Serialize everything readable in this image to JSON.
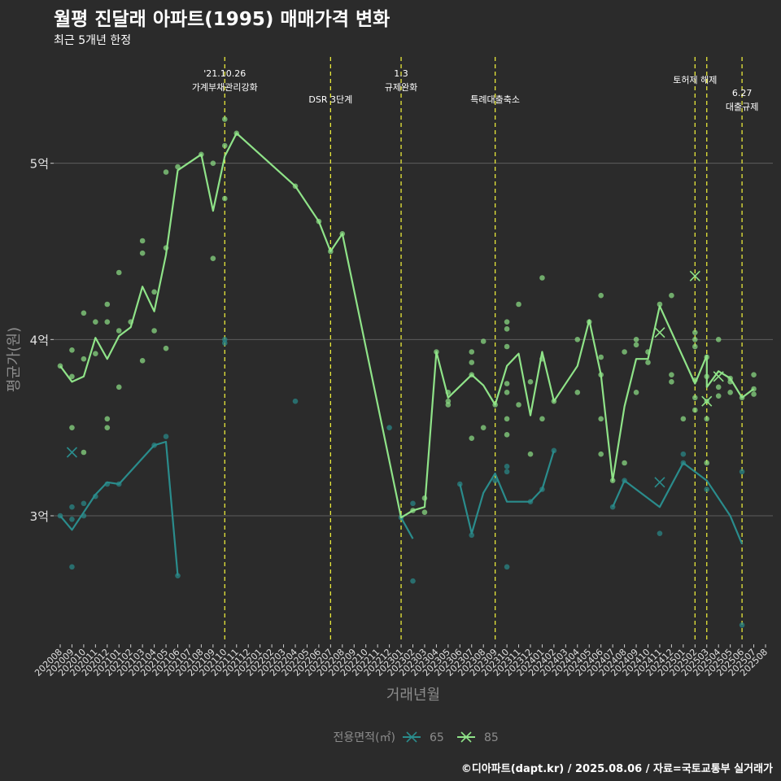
{
  "title": "월평 진달래 아파트(1995) 매매가격 변화",
  "subtitle": "최근 5개년 한정",
  "caption": "©디아파트(dapt.kr) / 2025.08.06 / 자료=국토교통부 실거래가",
  "colors": {
    "background": "#2b2b2b",
    "series65": "#2a8c8c",
    "series85": "#8fe388",
    "vline": "#e8e83a",
    "grid": "#5e5e5e"
  },
  "chart_data": {
    "type": "line",
    "xlabel": "거래년월",
    "ylabel": "평균가(원)",
    "ylim": [
      2.28,
      5.52
    ],
    "yticks": [
      {
        "value": 3,
        "label": "3억"
      },
      {
        "value": 4,
        "label": "4억"
      },
      {
        "value": 5,
        "label": "5억"
      }
    ],
    "x": [
      "202008",
      "202009",
      "202010",
      "202011",
      "202012",
      "202101",
      "202102",
      "202103",
      "202104",
      "202105",
      "202106",
      "202107",
      "202108",
      "202109",
      "202110",
      "202111",
      "202112",
      "202201",
      "202202",
      "202203",
      "202204",
      "202205",
      "202206",
      "202207",
      "202208",
      "202209",
      "202210",
      "202211",
      "202212",
      "202301",
      "202302",
      "202303",
      "202304",
      "202305",
      "202306",
      "202307",
      "202308",
      "202309",
      "202310",
      "202311",
      "202312",
      "202401",
      "202402",
      "202403",
      "202404",
      "202405",
      "202406",
      "202407",
      "202408",
      "202409",
      "202410",
      "202411",
      "202412",
      "202501",
      "202502",
      "202503",
      "202504",
      "202505",
      "202506",
      "202507",
      "202508"
    ],
    "legend": {
      "title": "전용면적(㎡)",
      "position": "bottom"
    },
    "series": [
      {
        "name": "65",
        "line": [
          [
            "202008",
            3.0
          ],
          [
            "202009",
            2.92
          ],
          [
            "202010",
            3.02
          ],
          [
            "202011",
            3.12
          ],
          [
            "202012",
            3.19
          ],
          [
            "202101",
            3.18
          ],
          [
            "202104",
            3.4
          ],
          [
            "202105",
            3.42
          ],
          [
            "202106",
            2.66
          ],
          null,
          [
            "202301",
            2.99
          ],
          [
            "202302",
            2.87
          ],
          null,
          [
            "202306",
            3.18
          ],
          [
            "202307",
            2.9
          ],
          [
            "202308",
            3.13
          ],
          [
            "202309",
            3.24
          ],
          [
            "202310",
            3.08
          ],
          [
            "202312",
            3.08
          ],
          [
            "202401",
            3.15
          ],
          [
            "202402",
            3.37
          ],
          null,
          [
            "202407",
            3.05
          ],
          [
            "202408",
            3.2
          ],
          [
            "202411",
            3.05
          ],
          [
            "202501",
            3.3
          ],
          [
            "202503",
            3.2
          ],
          [
            "202505",
            3.0
          ],
          [
            "202506",
            2.84
          ]
        ],
        "points": [
          [
            "202008",
            3.0
          ],
          [
            "202009",
            3.05
          ],
          [
            "202009",
            2.98
          ],
          [
            "202009",
            2.71
          ],
          [
            "202010",
            3.0
          ],
          [
            "202010",
            3.07
          ],
          [
            "202011",
            3.11
          ],
          [
            "202012",
            3.18
          ],
          [
            "202101",
            3.18
          ],
          [
            "202104",
            3.4
          ],
          [
            "202105",
            3.45
          ],
          [
            "202106",
            2.66
          ],
          [
            "202110",
            3.98
          ],
          [
            "202110",
            4.0
          ],
          [
            "202204",
            3.65
          ],
          [
            "202212",
            3.5
          ],
          [
            "202301",
            2.99
          ],
          [
            "202302",
            2.63
          ],
          [
            "202302",
            3.07
          ],
          [
            "202306",
            3.18
          ],
          [
            "202307",
            2.89
          ],
          [
            "202309",
            3.2
          ],
          [
            "202310",
            3.25
          ],
          [
            "202310",
            3.28
          ],
          [
            "202310",
            2.71
          ],
          [
            "202312",
            3.08
          ],
          [
            "202401",
            3.15
          ],
          [
            "202402",
            3.37
          ],
          [
            "202407",
            3.05
          ],
          [
            "202408",
            3.2
          ],
          [
            "202411",
            2.9
          ],
          [
            "202501",
            3.35
          ],
          [
            "202501",
            3.3
          ],
          [
            "202503",
            3.15
          ],
          [
            "202506",
            3.25
          ],
          [
            "202506",
            2.38
          ]
        ],
        "means": [
          [
            "202009",
            3.36
          ],
          [
            "202411",
            3.19
          ]
        ]
      },
      {
        "name": "85",
        "line": [
          [
            "202008",
            3.85
          ],
          [
            "202009",
            3.76
          ],
          [
            "202010",
            3.79
          ],
          [
            "202011",
            4.01
          ],
          [
            "202012",
            3.89
          ],
          [
            "202101",
            4.02
          ],
          [
            "202102",
            4.07
          ],
          [
            "202103",
            4.3
          ],
          [
            "202104",
            4.16
          ],
          [
            "202105",
            4.48
          ],
          [
            "202106",
            4.96
          ],
          [
            "202108",
            5.05
          ],
          [
            "202109",
            4.73
          ],
          [
            "202110",
            5.04
          ],
          [
            "202111",
            5.17
          ],
          [
            "202204",
            4.87
          ],
          [
            "202206",
            4.67
          ],
          [
            "202207",
            4.5
          ],
          [
            "202208",
            4.6
          ],
          [
            "202301",
            2.99
          ],
          [
            "202302",
            3.03
          ],
          [
            "202303",
            3.05
          ],
          [
            "202304",
            3.93
          ],
          [
            "202305",
            3.67
          ],
          [
            "202307",
            3.8
          ],
          [
            "202308",
            3.74
          ],
          [
            "202309",
            3.63
          ],
          [
            "202310",
            3.85
          ],
          [
            "202311",
            3.92
          ],
          [
            "202312",
            3.57
          ],
          [
            "202401",
            3.93
          ],
          [
            "202402",
            3.65
          ],
          [
            "202404",
            3.85
          ],
          [
            "202405",
            4.11
          ],
          [
            "202406",
            3.8
          ],
          [
            "202407",
            3.2
          ],
          [
            "202408",
            3.62
          ],
          [
            "202409",
            3.89
          ],
          [
            "202410",
            3.89
          ],
          [
            "202411",
            4.19
          ],
          [
            "202502",
            3.75
          ],
          [
            "202503",
            3.91
          ],
          [
            "202503",
            3.73
          ],
          [
            "202504",
            3.82
          ],
          [
            "202505",
            3.78
          ],
          [
            "202506",
            3.67
          ],
          [
            "202507",
            3.72
          ]
        ],
        "points": [
          [
            "202008",
            3.85
          ],
          [
            "202009",
            3.5
          ],
          [
            "202009",
            3.79
          ],
          [
            "202009",
            3.94
          ],
          [
            "202010",
            4.15
          ],
          [
            "202010",
            3.89
          ],
          [
            "202010",
            3.36
          ],
          [
            "202011",
            4.1
          ],
          [
            "202011",
            3.92
          ],
          [
            "202012",
            4.2
          ],
          [
            "202012",
            4.1
          ],
          [
            "202012",
            3.55
          ],
          [
            "202012",
            3.5
          ],
          [
            "202101",
            4.38
          ],
          [
            "202101",
            4.05
          ],
          [
            "202101",
            3.73
          ],
          [
            "202102",
            4.1
          ],
          [
            "202103",
            4.56
          ],
          [
            "202103",
            4.49
          ],
          [
            "202103",
            3.88
          ],
          [
            "202104",
            4.27
          ],
          [
            "202104",
            4.05
          ],
          [
            "202105",
            4.95
          ],
          [
            "202105",
            4.52
          ],
          [
            "202105",
            3.95
          ],
          [
            "202106",
            4.98
          ],
          [
            "202108",
            5.05
          ],
          [
            "202109",
            4.46
          ],
          [
            "202109",
            5.0
          ],
          [
            "202110",
            5.25
          ],
          [
            "202110",
            5.1
          ],
          [
            "202110",
            4.8
          ],
          [
            "202111",
            5.17
          ],
          [
            "202204",
            4.87
          ],
          [
            "202206",
            4.67
          ],
          [
            "202207",
            4.5
          ],
          [
            "202208",
            4.6
          ],
          [
            "202302",
            3.03
          ],
          [
            "202303",
            3.1
          ],
          [
            "202303",
            3.02
          ],
          [
            "202304",
            3.93
          ],
          [
            "202305",
            3.7
          ],
          [
            "202305",
            3.65
          ],
          [
            "202305",
            3.63
          ],
          [
            "202307",
            3.93
          ],
          [
            "202307",
            3.87
          ],
          [
            "202307",
            3.8
          ],
          [
            "202307",
            3.44
          ],
          [
            "202308",
            3.99
          ],
          [
            "202308",
            3.5
          ],
          [
            "202309",
            3.63
          ],
          [
            "202310",
            4.1
          ],
          [
            "202310",
            4.06
          ],
          [
            "202310",
            3.96
          ],
          [
            "202310",
            3.75
          ],
          [
            "202310",
            3.7
          ],
          [
            "202310",
            3.55
          ],
          [
            "202310",
            3.46
          ],
          [
            "202311",
            4.2
          ],
          [
            "202311",
            3.63
          ],
          [
            "202312",
            3.76
          ],
          [
            "202312",
            3.35
          ],
          [
            "202401",
            4.35
          ],
          [
            "202401",
            3.89
          ],
          [
            "202401",
            3.55
          ],
          [
            "202402",
            3.65
          ],
          [
            "202404",
            4.0
          ],
          [
            "202404",
            3.7
          ],
          [
            "202405",
            4.1
          ],
          [
            "202406",
            4.25
          ],
          [
            "202406",
            3.9
          ],
          [
            "202406",
            3.8
          ],
          [
            "202406",
            3.55
          ],
          [
            "202406",
            3.35
          ],
          [
            "202407",
            3.2
          ],
          [
            "202408",
            3.93
          ],
          [
            "202408",
            3.3
          ],
          [
            "202409",
            4.0
          ],
          [
            "202409",
            3.97
          ],
          [
            "202409",
            3.7
          ],
          [
            "202410",
            3.93
          ],
          [
            "202410",
            3.87
          ],
          [
            "202411",
            4.2
          ],
          [
            "202412",
            4.25
          ],
          [
            "202412",
            3.8
          ],
          [
            "202412",
            3.76
          ],
          [
            "202501",
            3.55
          ],
          [
            "202502",
            4.04
          ],
          [
            "202502",
            4.0
          ],
          [
            "202502",
            3.96
          ],
          [
            "202502",
            3.77
          ],
          [
            "202502",
            3.67
          ],
          [
            "202502",
            3.6
          ],
          [
            "202503",
            3.9
          ],
          [
            "202503",
            3.79
          ],
          [
            "202503",
            3.65
          ],
          [
            "202503",
            3.55
          ],
          [
            "202503",
            3.3
          ],
          [
            "202504",
            4.0
          ],
          [
            "202504",
            3.73
          ],
          [
            "202504",
            3.68
          ],
          [
            "202505",
            3.78
          ],
          [
            "202505",
            3.76
          ],
          [
            "202505",
            3.7
          ],
          [
            "202506",
            3.67
          ],
          [
            "202507",
            3.8
          ],
          [
            "202507",
            3.72
          ],
          [
            "202507",
            3.69
          ]
        ],
        "means": [
          [
            "202411",
            4.04
          ],
          [
            "202502",
            4.36
          ],
          [
            "202503",
            3.65
          ],
          [
            "202504",
            3.79
          ]
        ]
      }
    ],
    "events": [
      {
        "x": "202110",
        "lines": [
          "'21.10.26",
          "가계부채관리강화"
        ]
      },
      {
        "x": "202207",
        "lines": [
          "DSR 3단계"
        ]
      },
      {
        "x": "202301",
        "lines": [
          "1.3",
          "규제완화"
        ]
      },
      {
        "x": "202309",
        "lines": [
          "특례대출축소"
        ]
      },
      {
        "x": "202502",
        "lines": [
          "토허제 해제"
        ]
      },
      {
        "x": "202503",
        "lines": []
      },
      {
        "x": "202506",
        "lines": [
          "6.27",
          "대출규제"
        ]
      }
    ]
  }
}
